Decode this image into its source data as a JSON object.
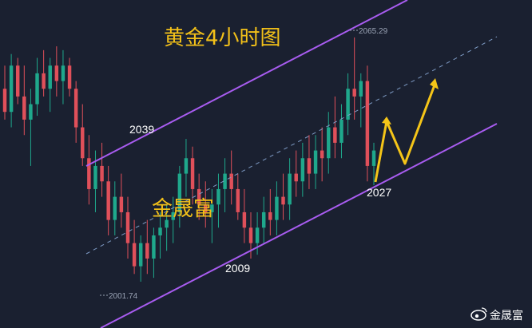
{
  "chart_data": {
    "type": "candlestick",
    "title": "黄金4小时图",
    "watermark": "金晟富",
    "annotations": [
      {
        "label": "2039",
        "kind": "swing-high"
      },
      {
        "label": "2009",
        "kind": "swing-low"
      },
      {
        "label": "2027",
        "kind": "swing-low"
      }
    ],
    "price_marks": [
      {
        "label": "2065.29",
        "kind": "high"
      },
      {
        "label": "2001.74",
        "kind": "low"
      }
    ],
    "channel": {
      "type": "ascending",
      "color": "#a85cf0",
      "midline_style": "dashed"
    },
    "projection": {
      "color": "#f5c518",
      "path": "zigzag-up"
    },
    "colors": {
      "up": "#1fa88c",
      "down": "#e0505a",
      "background": "#1a2030"
    },
    "candles": [
      [
        2052,
        2058,
        2044,
        2046
      ],
      [
        2046,
        2061,
        2042,
        2058
      ],
      [
        2058,
        2060,
        2048,
        2050
      ],
      [
        2050,
        2058,
        2040,
        2044
      ],
      [
        2044,
        2052,
        2032,
        2048
      ],
      [
        2048,
        2060,
        2045,
        2056
      ],
      [
        2056,
        2062,
        2050,
        2052
      ],
      [
        2052,
        2060,
        2046,
        2058
      ],
      [
        2058,
        2063,
        2050,
        2054
      ],
      [
        2054,
        2062,
        2048,
        2058
      ],
      [
        2058,
        2060,
        2050,
        2052
      ],
      [
        2052,
        2054,
        2038,
        2042
      ],
      [
        2042,
        2048,
        2032,
        2034
      ],
      [
        2034,
        2040,
        2022,
        2026
      ],
      [
        2026,
        2036,
        2020,
        2032
      ],
      [
        2032,
        2038,
        2024,
        2028
      ],
      [
        2028,
        2032,
        2014,
        2018
      ],
      [
        2018,
        2028,
        2014,
        2024
      ],
      [
        2024,
        2030,
        2016,
        2020
      ],
      [
        2020,
        2024,
        2008,
        2012
      ],
      [
        2012,
        2018,
        2004,
        2006
      ],
      [
        2006,
        2014,
        2002,
        2012
      ],
      [
        2012,
        2018,
        2004,
        2008
      ],
      [
        2008,
        2016,
        2003,
        2014
      ],
      [
        2014,
        2020,
        2008,
        2016
      ],
      [
        2016,
        2022,
        2010,
        2018
      ],
      [
        2018,
        2024,
        2012,
        2020
      ],
      [
        2020,
        2032,
        2016,
        2030
      ],
      [
        2030,
        2039,
        2024,
        2034
      ],
      [
        2034,
        2037,
        2022,
        2026
      ],
      [
        2026,
        2030,
        2018,
        2022
      ],
      [
        2022,
        2028,
        2016,
        2020
      ],
      [
        2020,
        2026,
        2012,
        2022
      ],
      [
        2022,
        2030,
        2016,
        2026
      ],
      [
        2026,
        2034,
        2020,
        2030
      ],
      [
        2030,
        2036,
        2022,
        2026
      ],
      [
        2026,
        2030,
        2018,
        2020
      ],
      [
        2020,
        2026,
        2012,
        2016
      ],
      [
        2016,
        2020,
        2008,
        2012
      ],
      [
        2012,
        2020,
        2009,
        2016
      ],
      [
        2016,
        2024,
        2012,
        2020
      ],
      [
        2020,
        2026,
        2014,
        2018
      ],
      [
        2018,
        2028,
        2014,
        2024
      ],
      [
        2024,
        2030,
        2018,
        2022
      ],
      [
        2022,
        2034,
        2018,
        2030
      ],
      [
        2030,
        2036,
        2024,
        2028
      ],
      [
        2028,
        2038,
        2024,
        2034
      ],
      [
        2034,
        2040,
        2026,
        2030
      ],
      [
        2030,
        2040,
        2026,
        2036
      ],
      [
        2036,
        2042,
        2028,
        2034
      ],
      [
        2034,
        2046,
        2030,
        2042
      ],
      [
        2042,
        2050,
        2034,
        2038
      ],
      [
        2038,
        2048,
        2034,
        2044
      ],
      [
        2044,
        2056,
        2040,
        2052
      ],
      [
        2052,
        2065.3,
        2044,
        2050
      ],
      [
        2050,
        2056,
        2042,
        2054
      ],
      [
        2054,
        2058,
        2028,
        2032
      ],
      [
        2032,
        2038,
        2027,
        2036
      ]
    ]
  }
}
